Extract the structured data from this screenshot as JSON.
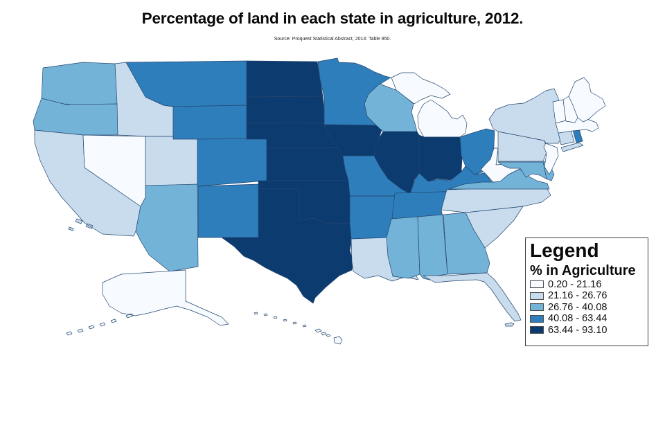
{
  "title": "Percentage of land in each state in agriculture, 2012.",
  "source_note": "Source: Proquest Statistical Abstract, 2014: Table 850.",
  "legend": {
    "title": "Legend",
    "subtitle": "% in Agriculture",
    "classes": [
      {
        "label": "0.20 - 21.16",
        "color": "#f7fbff"
      },
      {
        "label": "21.16 - 26.76",
        "color": "#c8dcee"
      },
      {
        "label": "26.76 - 40.08",
        "color": "#74b3d8"
      },
      {
        "label": "40.08 - 63.44",
        "color": "#2e7ebc"
      },
      {
        "label": "63.44 - 93.10",
        "color": "#0c3b70"
      }
    ]
  },
  "map": {
    "stroke_color": "#24466e",
    "background": "#ffffff"
  },
  "chart_data": {
    "type": "choropleth",
    "title": "Percentage of land in each state in agriculture, 2012.",
    "source": "Source: Proquest Statistical Abstract, 2014: Table 850.",
    "variable": "% in Agriculture",
    "year": 2012,
    "breaks": [
      0.2,
      21.16,
      26.76,
      40.08,
      63.44,
      93.1
    ],
    "class_labels": [
      "0.20 - 21.16",
      "21.16 - 26.76",
      "26.76 - 40.08",
      "40.08 - 63.44",
      "63.44 - 93.10"
    ],
    "class_colors": [
      "#f7fbff",
      "#c8dcee",
      "#74b3d8",
      "#2e7ebc",
      "#0c3b70"
    ],
    "legend_position": "bottom-right",
    "states": [
      {
        "abbr": "WA",
        "name": "Washington",
        "class": 3,
        "range": "26.76 - 40.08"
      },
      {
        "abbr": "OR",
        "name": "Oregon",
        "class": 3,
        "range": "26.76 - 40.08"
      },
      {
        "abbr": "CA",
        "name": "California",
        "class": 2,
        "range": "21.16 - 26.76"
      },
      {
        "abbr": "NV",
        "name": "Nevada",
        "class": 1,
        "range": "0.20 - 21.16"
      },
      {
        "abbr": "ID",
        "name": "Idaho",
        "class": 2,
        "range": "21.16 - 26.76"
      },
      {
        "abbr": "MT",
        "name": "Montana",
        "class": 4,
        "range": "40.08 - 63.44"
      },
      {
        "abbr": "WY",
        "name": "Wyoming",
        "class": 4,
        "range": "40.08 - 63.44"
      },
      {
        "abbr": "UT",
        "name": "Utah",
        "class": 2,
        "range": "21.16 - 26.76"
      },
      {
        "abbr": "CO",
        "name": "Colorado",
        "class": 4,
        "range": "40.08 - 63.44"
      },
      {
        "abbr": "AZ",
        "name": "Arizona",
        "class": 3,
        "range": "26.76 - 40.08"
      },
      {
        "abbr": "NM",
        "name": "New Mexico",
        "class": 4,
        "range": "40.08 - 63.44"
      },
      {
        "abbr": "ND",
        "name": "North Dakota",
        "class": 5,
        "range": "63.44 - 93.10"
      },
      {
        "abbr": "SD",
        "name": "South Dakota",
        "class": 5,
        "range": "63.44 - 93.10"
      },
      {
        "abbr": "NE",
        "name": "Nebraska",
        "class": 5,
        "range": "63.44 - 93.10"
      },
      {
        "abbr": "KS",
        "name": "Kansas",
        "class": 5,
        "range": "63.44 - 93.10"
      },
      {
        "abbr": "OK",
        "name": "Oklahoma",
        "class": 5,
        "range": "63.44 - 93.10"
      },
      {
        "abbr": "TX",
        "name": "Texas",
        "class": 5,
        "range": "63.44 - 93.10"
      },
      {
        "abbr": "MN",
        "name": "Minnesota",
        "class": 4,
        "range": "40.08 - 63.44"
      },
      {
        "abbr": "IA",
        "name": "Iowa",
        "class": 5,
        "range": "63.44 - 93.10"
      },
      {
        "abbr": "MO",
        "name": "Missouri",
        "class": 4,
        "range": "40.08 - 63.44"
      },
      {
        "abbr": "AR",
        "name": "Arkansas",
        "class": 4,
        "range": "40.08 - 63.44"
      },
      {
        "abbr": "LA",
        "name": "Louisiana",
        "class": 2,
        "range": "21.16 - 26.76"
      },
      {
        "abbr": "WI",
        "name": "Wisconsin",
        "class": 3,
        "range": "26.76 - 40.08"
      },
      {
        "abbr": "IL",
        "name": "Illinois",
        "class": 5,
        "range": "63.44 - 93.10"
      },
      {
        "abbr": "MI",
        "name": "Michigan",
        "class": 1,
        "range": "0.20 - 21.16"
      },
      {
        "abbr": "IN",
        "name": "Indiana",
        "class": 5,
        "range": "63.44 - 93.10"
      },
      {
        "abbr": "OH",
        "name": "Ohio",
        "class": 4,
        "range": "40.08 - 63.44"
      },
      {
        "abbr": "KY",
        "name": "Kentucky",
        "class": 4,
        "range": "40.08 - 63.44"
      },
      {
        "abbr": "TN",
        "name": "Tennessee",
        "class": 4,
        "range": "40.08 - 63.44"
      },
      {
        "abbr": "MS",
        "name": "Mississippi",
        "class": 3,
        "range": "26.76 - 40.08"
      },
      {
        "abbr": "AL",
        "name": "Alabama",
        "class": 3,
        "range": "26.76 - 40.08"
      },
      {
        "abbr": "GA",
        "name": "Georgia",
        "class": 3,
        "range": "26.76 - 40.08"
      },
      {
        "abbr": "FL",
        "name": "Florida",
        "class": 2,
        "range": "21.16 - 26.76"
      },
      {
        "abbr": "SC",
        "name": "South Carolina",
        "class": 2,
        "range": "21.16 - 26.76"
      },
      {
        "abbr": "NC",
        "name": "North Carolina",
        "class": 2,
        "range": "21.16 - 26.76"
      },
      {
        "abbr": "VA",
        "name": "Virginia",
        "class": 3,
        "range": "26.76 - 40.08"
      },
      {
        "abbr": "WV",
        "name": "West Virginia",
        "class": 1,
        "range": "0.20 - 21.16"
      },
      {
        "abbr": "MD",
        "name": "Maryland",
        "class": 3,
        "range": "26.76 - 40.08"
      },
      {
        "abbr": "DE",
        "name": "Delaware",
        "class": 3,
        "range": "26.76 - 40.08"
      },
      {
        "abbr": "PA",
        "name": "Pennsylvania",
        "class": 2,
        "range": "21.16 - 26.76"
      },
      {
        "abbr": "NJ",
        "name": "New Jersey",
        "class": 1,
        "range": "0.20 - 21.16"
      },
      {
        "abbr": "NY",
        "name": "New York",
        "class": 2,
        "range": "21.16 - 26.76"
      },
      {
        "abbr": "CT",
        "name": "Connecticut",
        "class": 2,
        "range": "21.16 - 26.76"
      },
      {
        "abbr": "RI",
        "name": "Rhode Island",
        "class": 4,
        "range": "40.08 - 63.44"
      },
      {
        "abbr": "MA",
        "name": "Massachusetts",
        "class": 1,
        "range": "0.20 - 21.16"
      },
      {
        "abbr": "VT",
        "name": "Vermont",
        "class": 1,
        "range": "0.20 - 21.16"
      },
      {
        "abbr": "NH",
        "name": "New Hampshire",
        "class": 1,
        "range": "0.20 - 21.16"
      },
      {
        "abbr": "ME",
        "name": "Maine",
        "class": 1,
        "range": "0.20 - 21.16"
      },
      {
        "abbr": "AK",
        "name": "Alaska",
        "class": 1,
        "range": "0.20 - 21.16"
      },
      {
        "abbr": "HI",
        "name": "Hawaii",
        "class": 1,
        "range": "0.20 - 21.16"
      }
    ]
  }
}
